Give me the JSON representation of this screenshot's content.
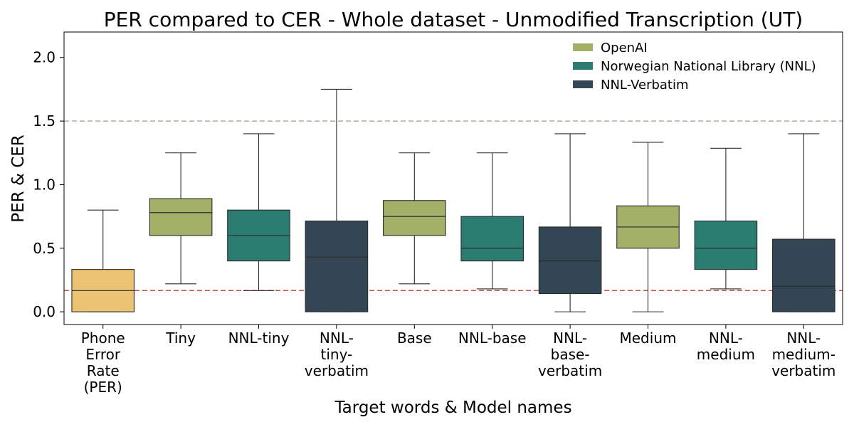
{
  "chart_data": {
    "type": "box",
    "title": "PER compared to CER  - Whole dataset - Unmodified Transcription (UT)",
    "xlabel": "Target words  &  Model names",
    "ylabel": "PER & CER",
    "ylim": [
      -0.1,
      2.2
    ],
    "yticks": [
      0.0,
      0.5,
      1.0,
      1.5,
      2.0
    ],
    "ytick_labels": [
      "0.0",
      "0.5",
      "1.0",
      "1.5",
      "2.0"
    ],
    "grid": false,
    "legend_position": "top-right",
    "reference_lines": [
      {
        "y": 1.5,
        "color": "#a8b29a",
        "style": "dashed"
      },
      {
        "y": 0.167,
        "color": "#cf4b4b",
        "style": "dashed"
      }
    ],
    "legend": [
      {
        "label": "OpenAI",
        "color": "#a3b067"
      },
      {
        "label": "Norwegian National Library (NNL)",
        "color": "#2a7d70"
      },
      {
        "label": "NNL-Verbatim",
        "color": "#334654"
      }
    ],
    "categories": [
      {
        "label": [
          "Phone",
          "Error",
          "Rate",
          "(PER)"
        ],
        "color": "#ebc373",
        "stats": {
          "whisker_low": 0.0,
          "q1": 0.0,
          "median": 0.167,
          "q3": 0.333,
          "whisker_high": 0.8
        }
      },
      {
        "label": [
          "Tiny"
        ],
        "color": "#a3b067",
        "stats": {
          "whisker_low": 0.22,
          "q1": 0.6,
          "median": 0.78,
          "q3": 0.89,
          "whisker_high": 1.25
        }
      },
      {
        "label": [
          "NNL-tiny"
        ],
        "color": "#2a7d70",
        "stats": {
          "whisker_low": 0.167,
          "q1": 0.4,
          "median": 0.6,
          "q3": 0.8,
          "whisker_high": 1.4
        }
      },
      {
        "label": [
          "NNL-",
          "tiny-",
          "verbatim"
        ],
        "color": "#334654",
        "stats": {
          "whisker_low": 0.0,
          "q1": 0.0,
          "median": 0.43,
          "q3": 0.714,
          "whisker_high": 1.75
        }
      },
      {
        "label": [
          "Base"
        ],
        "color": "#a3b067",
        "stats": {
          "whisker_low": 0.22,
          "q1": 0.6,
          "median": 0.75,
          "q3": 0.875,
          "whisker_high": 1.25
        }
      },
      {
        "label": [
          "NNL-base"
        ],
        "color": "#2a7d70",
        "stats": {
          "whisker_low": 0.18,
          "q1": 0.4,
          "median": 0.5,
          "q3": 0.75,
          "whisker_high": 1.25
        }
      },
      {
        "label": [
          "NNL-",
          "base-",
          "verbatim"
        ],
        "color": "#334654",
        "stats": {
          "whisker_low": 0.0,
          "q1": 0.143,
          "median": 0.4,
          "q3": 0.667,
          "whisker_high": 1.4
        }
      },
      {
        "label": [
          "Medium"
        ],
        "color": "#a3b067",
        "stats": {
          "whisker_low": 0.0,
          "q1": 0.5,
          "median": 0.667,
          "q3": 0.833,
          "whisker_high": 1.333
        }
      },
      {
        "label": [
          "NNL-",
          "medium"
        ],
        "color": "#2a7d70",
        "stats": {
          "whisker_low": 0.18,
          "q1": 0.333,
          "median": 0.5,
          "q3": 0.714,
          "whisker_high": 1.286
        }
      },
      {
        "label": [
          "NNL-",
          "medium-",
          "verbatim"
        ],
        "color": "#334654",
        "stats": {
          "whisker_low": 0.0,
          "q1": 0.0,
          "median": 0.2,
          "q3": 0.571,
          "whisker_high": 1.4
        }
      }
    ]
  }
}
